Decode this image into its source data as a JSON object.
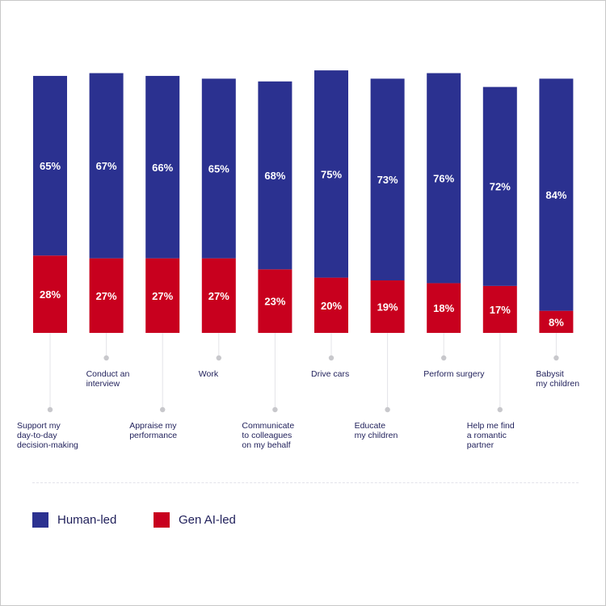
{
  "chart_data": {
    "type": "bar",
    "stacked": true,
    "categories": [
      "Support my day-to-day decision-making",
      "Conduct an interview",
      "Appraise my performance",
      "Work",
      "Communicate to colleagues on my behalf",
      "Drive cars",
      "Educate my children",
      "Perform surgery",
      "Help me find a romantic partner",
      "Babysit my children"
    ],
    "category_lines": [
      [
        "Support my",
        "day-to-day",
        "decision-making"
      ],
      [
        "Conduct an",
        "interview"
      ],
      [
        "Appraise my",
        "performance"
      ],
      [
        "Work"
      ],
      [
        "Communicate",
        "to colleagues",
        "on my behalf"
      ],
      [
        "Drive cars"
      ],
      [
        "Educate",
        "my children"
      ],
      [
        "Perform surgery"
      ],
      [
        "Help me find",
        "a romantic",
        "partner"
      ],
      [
        "Babysit",
        "my children"
      ]
    ],
    "series": [
      {
        "name": "Human-led",
        "color": "#2b3190",
        "values": [
          65,
          67,
          66,
          65,
          68,
          75,
          73,
          76,
          72,
          84
        ],
        "labels": [
          "65%",
          "67%",
          "66%",
          "65%",
          "68%",
          "75%",
          "73%",
          "76%",
          "72%",
          "84%"
        ]
      },
      {
        "name": "Gen AI-led",
        "color": "#c8001e",
        "values": [
          28,
          27,
          27,
          27,
          23,
          20,
          19,
          18,
          17,
          8
        ],
        "labels": [
          "28%",
          "27%",
          "27%",
          "27%",
          "23%",
          "20%",
          "19%",
          "18%",
          "17%",
          "8%"
        ]
      }
    ],
    "unit": "%",
    "grid": false,
    "legend": "bottom-left"
  }
}
